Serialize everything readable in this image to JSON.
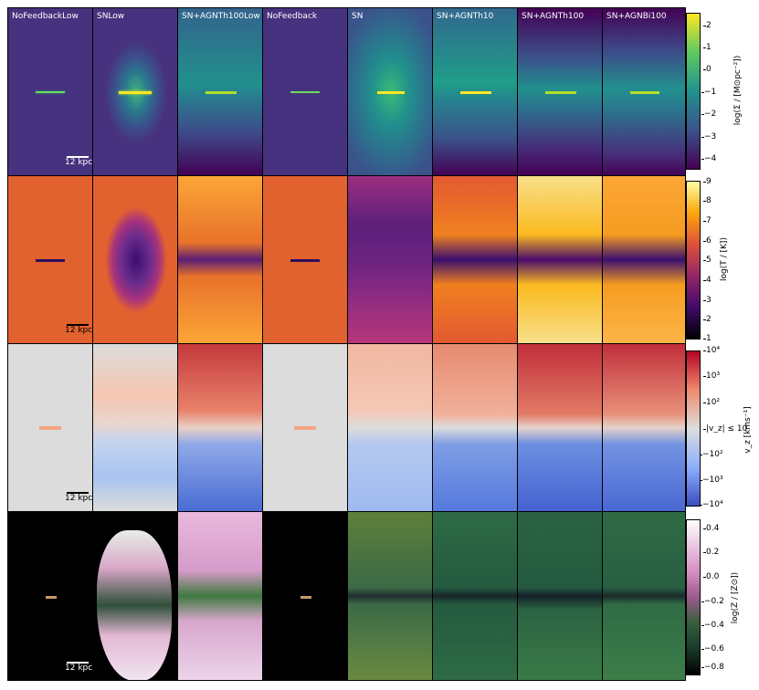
{
  "columns": [
    "NoFeedbackLow",
    "SNLow",
    "SN+AGNTh100Low",
    "NoFeedback",
    "SN",
    "SN+AGNTh10",
    "SN+AGNTh100",
    "SN+AGNBi100"
  ],
  "scale_bar_label": "12 kpc",
  "colorbars": [
    {
      "label": "log(Σ / [M⊙pc⁻²])",
      "ticks": [
        "2",
        "1",
        "0",
        "−1",
        "−2",
        "−3",
        "−4"
      ]
    },
    {
      "label": "log(T / [K])",
      "ticks": [
        "9",
        "8",
        "7",
        "6",
        "5",
        "4",
        "3",
        "2",
        "1"
      ]
    },
    {
      "label": "v_z [kms⁻¹]",
      "ticks": [
        "10⁴",
        "10³",
        "10²",
        "|v_z| ≤ 10",
        "−10²",
        "−10³",
        "−10⁴"
      ]
    },
    {
      "label": "log(Z / [Z⊙])",
      "ticks": [
        "0.4",
        "0.2",
        "0.0",
        "−0.2",
        "−0.4",
        "−0.6",
        "−0.8"
      ]
    }
  ],
  "colors": {
    "density_bg": "#482f77",
    "temp_bg": "#e2622f",
    "vel_bg": "#dcdcdc",
    "metal_bg": "#000000"
  }
}
